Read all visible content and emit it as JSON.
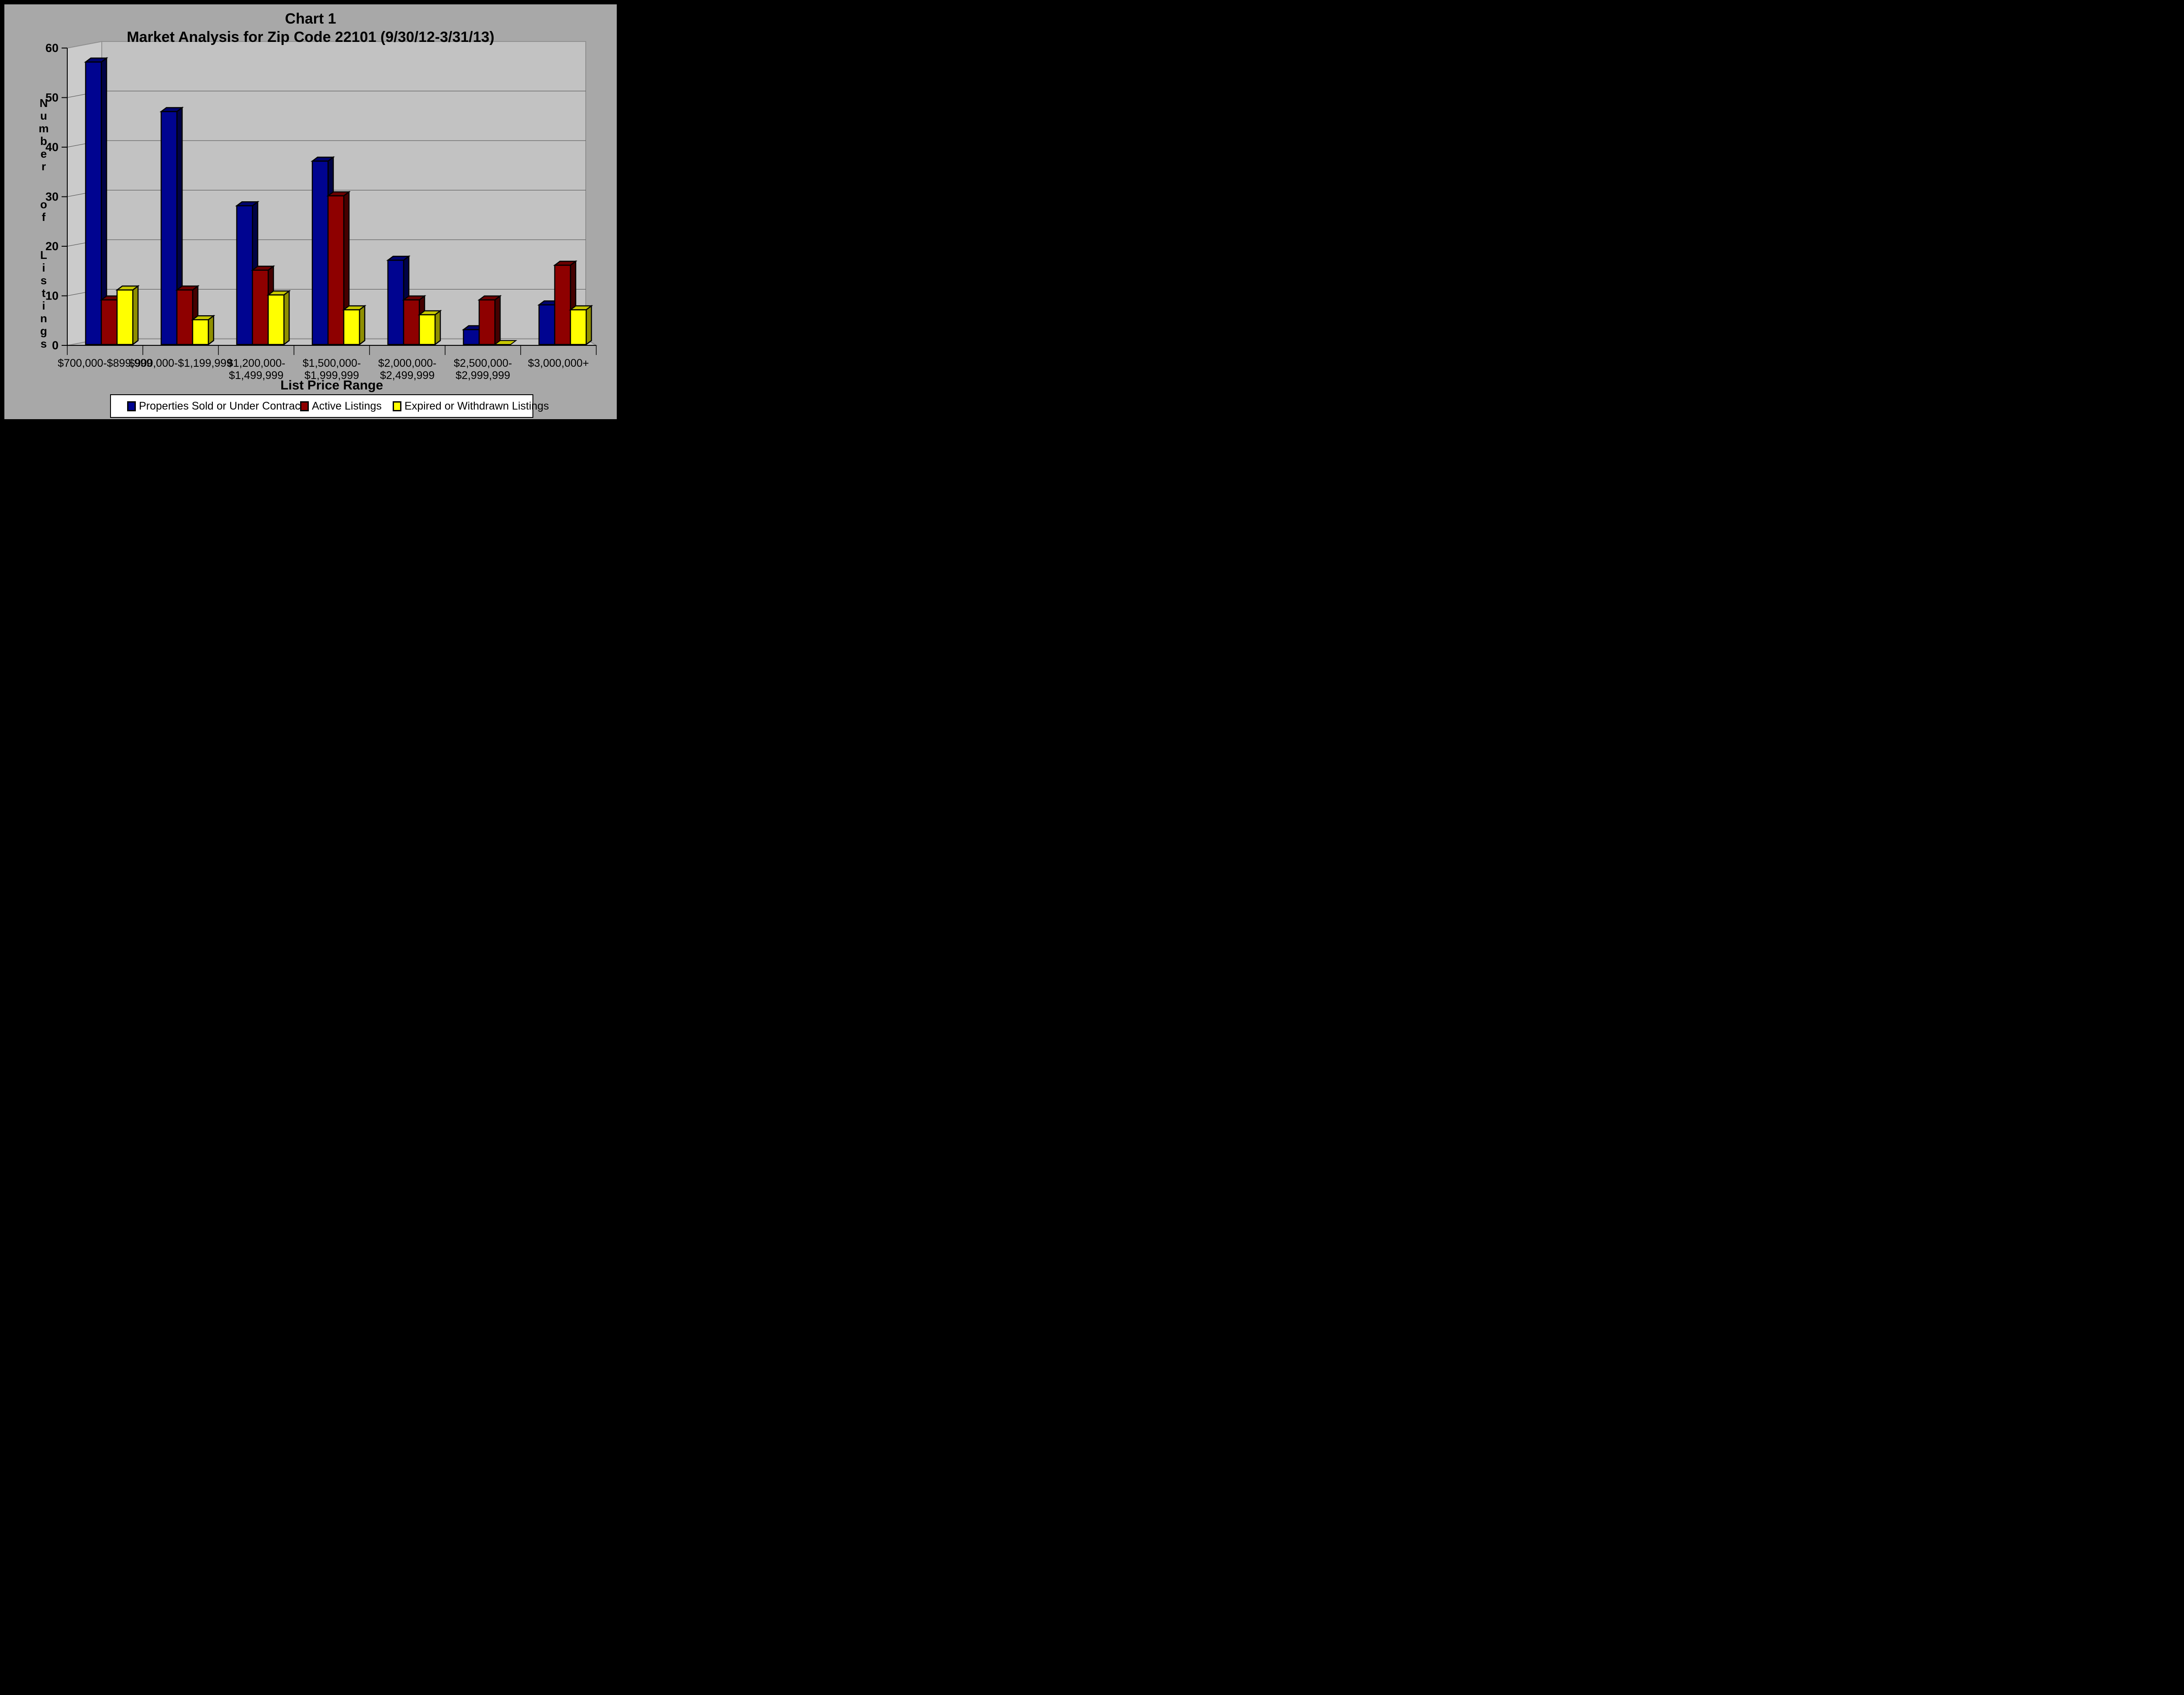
{
  "title": {
    "line1": "Chart 1",
    "line2": "Market Analysis for Zip Code 22101 (9/30/12-3/31/13)"
  },
  "chart_data": {
    "type": "bar",
    "projection": "3d",
    "title": "Chart 1 — Market Analysis for Zip Code 22101 (9/30/12-3/31/13)",
    "xlabel": "List Price Range",
    "ylabel": "Number of Listings",
    "ylim": [
      0,
      60
    ],
    "yticks": [
      0,
      10,
      20,
      30,
      40,
      50,
      60
    ],
    "grid": true,
    "legend_position": "bottom",
    "categories": [
      [
        "$700,000-$899,999"
      ],
      [
        "$900,000-$1,199,999"
      ],
      [
        "$1,200,000-",
        "$1,499,999"
      ],
      [
        "$1,500,000-",
        "$1,999,999"
      ],
      [
        "$2,000,000-",
        "$2,499,999"
      ],
      [
        "$2,500,000-",
        "$2,999,999"
      ],
      [
        "$3,000,000+"
      ]
    ],
    "series": [
      {
        "name": "Properties Sold or Under Contract",
        "values": [
          57,
          47,
          28,
          37,
          17,
          3,
          8
        ],
        "color_front": "#000490",
        "color_top": "#00036E",
        "color_side": "#000246"
      },
      {
        "name": "Active Listings",
        "values": [
          9,
          11,
          15,
          30,
          9,
          9,
          16
        ],
        "color_front": "#8E0000",
        "color_top": "#6B0000",
        "color_side": "#450000"
      },
      {
        "name": "Expired or Withdrawn Listings",
        "values": [
          11,
          5,
          10,
          7,
          6,
          0,
          7
        ],
        "color_front": "#FFFF00",
        "color_top": "#C7C700",
        "color_side": "#8F8F00"
      }
    ]
  },
  "colors": {
    "frame": "#000000",
    "background": "#A8A8A8",
    "back_wall": "#C2C2C2",
    "side_wall": "#CBCBCB",
    "floor": "#C5C5C5",
    "wall_edge": "#8F8F8F",
    "gridline": "#4A4A4A",
    "axis": "#000000",
    "legend_background": "#FFFFFF",
    "text": "#000000"
  }
}
